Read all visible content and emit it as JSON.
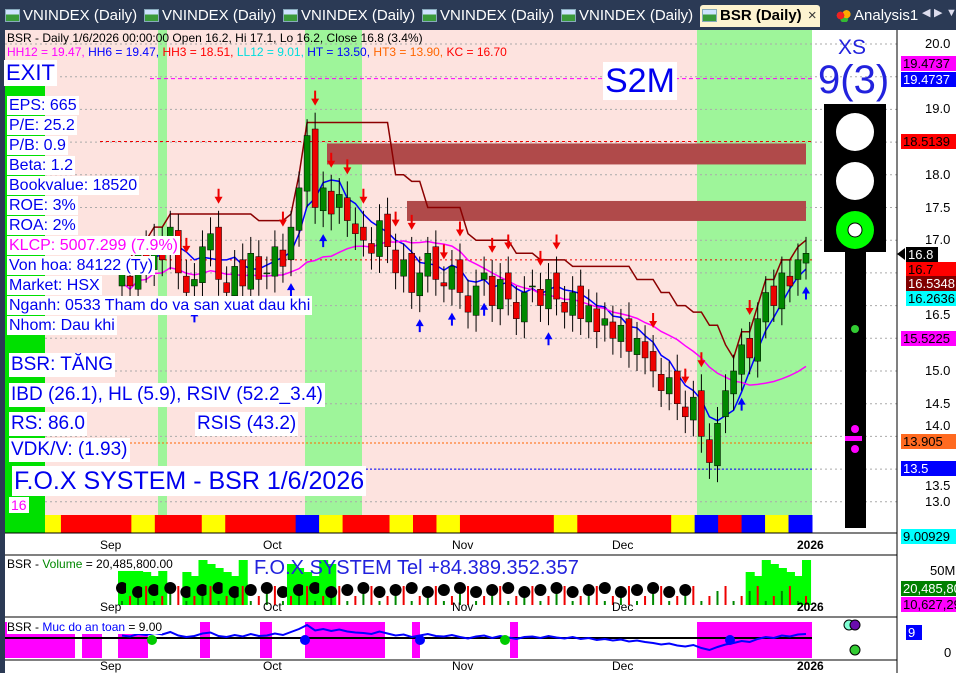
{
  "tabs": [
    {
      "label": "VNINDEX (Daily)"
    },
    {
      "label": "VNINDEX (Daily)"
    },
    {
      "label": "VNINDEX (Daily)"
    },
    {
      "label": "VNINDEX (Daily)"
    },
    {
      "label": "VNINDEX (Daily)"
    },
    {
      "label": "BSR (Daily)",
      "active": true,
      "close": "×"
    },
    {
      "label": "Analysis1"
    }
  ],
  "tab_nav": {
    "prev": "◀",
    "next": "▶",
    "menu": "▼"
  },
  "header": {
    "line1": "BSR - Daily 1/6/2026 00:00:00 Open 16.2, Hi 17.1, Lo 16.2, Close 16.8 (3.4%)",
    "hh12": "HH12 = 19.47,",
    "hh6": "HH6 = 19.47,",
    "hh3": "HH3 = 18.51,",
    "ll12": "LL12 = 9.01,",
    "ht": "HT  = 13.50,",
    "ht3": "HT3  = 13.90,",
    "kc": "KC = 16.70"
  },
  "info": {
    "exit": "EXIT",
    "eps": "EPS: 665",
    "pe": "P/E: 25.2",
    "pb": "P/B: 0.9",
    "beta": "Beta: 1.2",
    "bookvalue": "Bookvalue: 18520",
    "roe": "ROE: 3%",
    "roa": "ROA: 2%",
    "klcp": "KLCP: 5007.299 (7.9%)",
    "vonhoa": "Von hoa: 84122 (Ty)",
    "market": "Market: HSX",
    "nganh": "Nganh: 0533 Tham do va san xuat dau khi",
    "nhom": "Nhom: Dau khi",
    "status": "BSR: TĂNG",
    "ibd": "IBD (26.1), HL (5.9), RSIV (52.2_3.4)",
    "rs": "RS: 86.0",
    "rsis": "RSIS (43.2)",
    "vdk": "VDK/V:  (1.93)",
    "title": "F.O.X SYSTEM - BSR 1/6/2026",
    "count": "16",
    "s2m": "S2M"
  },
  "signal": {
    "xs": "XS",
    "score": "9(3)",
    "light": "green"
  },
  "price_scale": {
    "ticks": [
      "20.0",
      "19.0",
      "18.0",
      "17.5",
      "17.0",
      "16.5",
      "15.0",
      "14.5",
      "14.0",
      "13.5",
      "13.0"
    ],
    "tags": [
      {
        "text": "19.4737",
        "bg": "#ff00ff",
        "fg": "#000"
      },
      {
        "text": "19.4737",
        "bg": "#0000ff",
        "fg": "#fff"
      },
      {
        "text": "18.5139",
        "bg": "#ff0000",
        "fg": "#000"
      },
      {
        "text": "16.8",
        "bg": "#000000",
        "fg": "#fff"
      },
      {
        "text": "16.7",
        "bg": "#ff0000",
        "fg": "#000"
      },
      {
        "text": "16.5348",
        "bg": "#800000",
        "fg": "#fff"
      },
      {
        "text": "16.2636",
        "bg": "#00ffff",
        "fg": "#000"
      },
      {
        "text": "15.5225",
        "bg": "#ff00ff",
        "fg": "#000"
      },
      {
        "text": "13.905",
        "bg": "#ff6a20",
        "fg": "#000"
      },
      {
        "text": "13.5",
        "bg": "#0000ff",
        "fg": "#fff"
      },
      {
        "text": "9.00929",
        "bg": "#00ffff",
        "fg": "#000"
      }
    ]
  },
  "months": [
    "Sep",
    "Oct",
    "Nov",
    "Dec",
    "2026"
  ],
  "volume_pane": {
    "title_sym": "BSR - ",
    "title_name": "Volume",
    "title_val": " = 20,485,800.00",
    "banner": "F.O.X SYSTEM Tel +84.389.352.357",
    "tick": "50M",
    "tags": [
      {
        "text": "20,485,800",
        "bg": "#008000",
        "fg": "#fff"
      },
      {
        "text": "10,627,29",
        "bg": "#ff00ff",
        "fg": "#000"
      }
    ]
  },
  "safety_pane": {
    "title_sym": "BSR - ",
    "title_name": "Muc do an toan",
    "title_val": " = 9.00",
    "tick": "0",
    "tag": "9"
  },
  "chart_data": {
    "type": "candlestick",
    "ylim": [
      12.5,
      20.0
    ],
    "x_tick_labels": [
      "Sep",
      "Oct",
      "Nov",
      "Dec",
      "2026"
    ],
    "close": [
      16.5,
      16.3,
      16.8,
      16.6,
      17.0,
      16.7,
      17.2,
      16.5,
      16.2,
      16.4,
      16.9,
      17.1,
      16.4,
      16.2,
      16.6,
      16.3,
      16.8,
      16.4,
      16.5,
      16.9,
      16.6,
      17.2,
      17.8,
      18.6,
      17.5,
      17.8,
      17.4,
      17.7,
      17.3,
      17.1,
      17.0,
      16.8,
      17.3,
      16.9,
      16.5,
      16.7,
      16.2,
      16.5,
      16.8,
      16.4,
      16.3,
      16.6,
      16.2,
      15.9,
      16.3,
      16.5,
      16.0,
      16.4,
      16.1,
      15.8,
      16.2,
      16.3,
      16.0,
      16.4,
      16.1,
      15.9,
      16.2,
      15.8,
      16.0,
      15.6,
      15.8,
      15.5,
      15.7,
      15.3,
      15.5,
      15.2,
      15.0,
      14.7,
      14.9,
      14.5,
      14.3,
      14.6,
      14.0,
      13.6,
      14.2,
      14.7,
      15.0,
      15.4,
      15.2,
      15.8,
      16.2,
      16.0,
      16.5,
      16.3,
      16.7,
      16.8
    ],
    "last": {
      "open": 16.2,
      "high": 17.1,
      "low": 16.2,
      "close": 16.8,
      "change_pct": 3.4
    },
    "levels": {
      "HH12": 19.47,
      "HH6": 19.47,
      "HH3": 18.51,
      "LL12": 9.01,
      "HT": 13.5,
      "HT3": 13.9,
      "KC": 16.7
    }
  }
}
